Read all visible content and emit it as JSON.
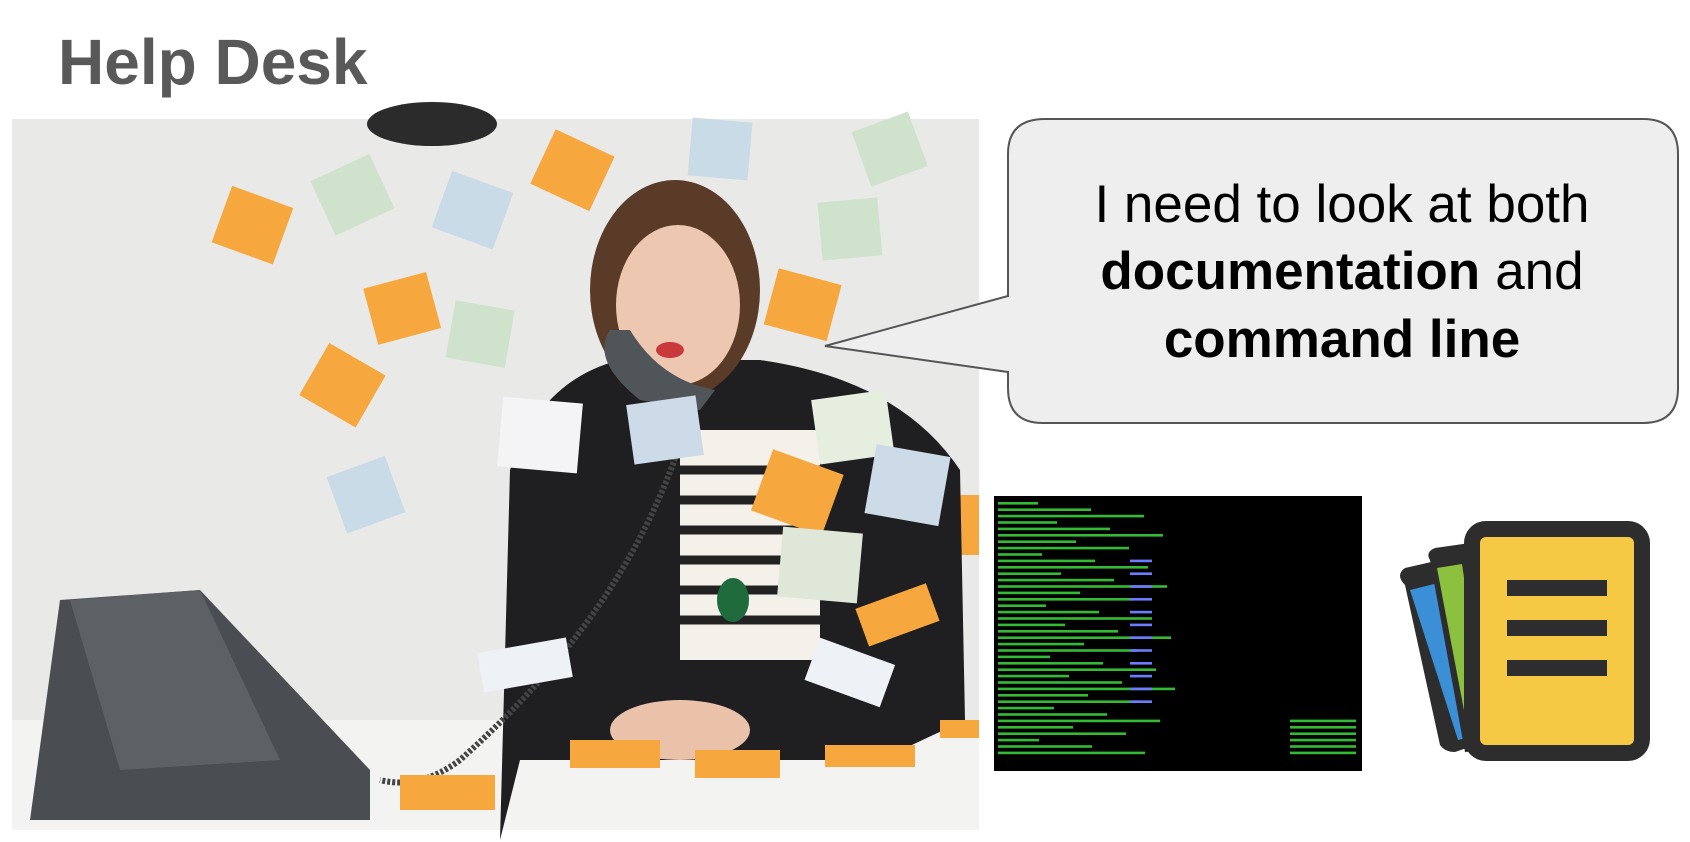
{
  "header": {
    "title": "Help Desk"
  },
  "bubble": {
    "lines": [
      [
        {
          "text": "I need to look at both",
          "bold": false
        }
      ],
      [
        {
          "text": "documentation",
          "bold": true
        },
        {
          "text": "and",
          "bold": false
        }
      ],
      [
        {
          "text": "command line",
          "bold": true
        }
      ]
    ]
  }
}
